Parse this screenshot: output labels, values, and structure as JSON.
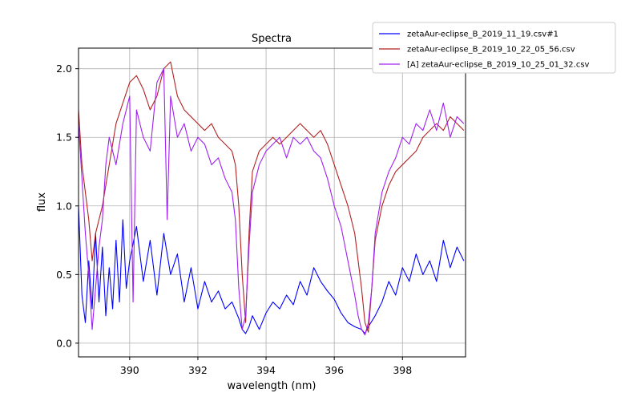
{
  "chart_data": {
    "type": "line",
    "title": "Spectra",
    "xlabel": "wavelength (nm)",
    "ylabel": "flux",
    "xlim": [
      388.5,
      399.85
    ],
    "ylim": [
      -0.1,
      2.15
    ],
    "grid": true,
    "legend_position": "top-right, outside plot",
    "x_ticks": [
      390,
      392,
      394,
      396,
      398
    ],
    "x_tick_labels": [
      "390",
      "392",
      "394",
      "396",
      "398"
    ],
    "y_ticks": [
      0.0,
      0.5,
      1.0,
      1.5,
      2.0
    ],
    "y_tick_labels": [
      "0.0",
      "0.5",
      "1.0",
      "1.5",
      "2.0"
    ],
    "series": [
      {
        "name": "zetaAur-eclipse_B_2019_11_19.csv#1",
        "color": "#0000ff",
        "x": [
          388.5,
          388.6,
          388.7,
          388.8,
          388.9,
          389.0,
          389.1,
          389.2,
          389.3,
          389.4,
          389.5,
          389.6,
          389.7,
          389.8,
          389.9,
          390.0,
          390.2,
          390.4,
          390.6,
          390.8,
          391.0,
          391.2,
          391.4,
          391.6,
          391.8,
          392.0,
          392.2,
          392.4,
          392.6,
          392.8,
          393.0,
          393.2,
          393.3,
          393.4,
          393.5,
          393.6,
          393.8,
          394.0,
          394.2,
          394.4,
          394.6,
          394.8,
          395.0,
          395.2,
          395.4,
          395.6,
          395.8,
          396.0,
          396.2,
          396.4,
          396.6,
          396.8,
          396.9,
          397.0,
          397.2,
          397.4,
          397.6,
          397.8,
          398.0,
          398.2,
          398.4,
          398.6,
          398.8,
          399.0,
          399.2,
          399.4,
          399.6,
          399.8
        ],
        "y": [
          1.0,
          0.35,
          0.15,
          0.6,
          0.25,
          0.8,
          0.3,
          0.7,
          0.2,
          0.55,
          0.25,
          0.75,
          0.3,
          0.9,
          0.4,
          0.6,
          0.85,
          0.45,
          0.75,
          0.35,
          0.8,
          0.5,
          0.65,
          0.3,
          0.55,
          0.25,
          0.45,
          0.3,
          0.38,
          0.25,
          0.3,
          0.18,
          0.1,
          0.07,
          0.12,
          0.2,
          0.1,
          0.22,
          0.3,
          0.25,
          0.35,
          0.28,
          0.45,
          0.35,
          0.55,
          0.45,
          0.38,
          0.32,
          0.22,
          0.15,
          0.12,
          0.1,
          0.07,
          0.12,
          0.2,
          0.3,
          0.45,
          0.35,
          0.55,
          0.45,
          0.65,
          0.5,
          0.6,
          0.45,
          0.75,
          0.55,
          0.7,
          0.6
        ]
      },
      {
        "name": "zetaAur-eclipse_B_2019_10_22_05_56.csv",
        "color": "#b22222",
        "x": [
          388.5,
          388.6,
          388.7,
          388.8,
          388.9,
          389.0,
          389.2,
          389.4,
          389.6,
          389.8,
          390.0,
          390.2,
          390.4,
          390.6,
          390.8,
          391.0,
          391.2,
          391.4,
          391.6,
          391.8,
          392.0,
          392.2,
          392.4,
          392.6,
          392.8,
          393.0,
          393.1,
          393.2,
          393.3,
          393.4,
          393.5,
          393.6,
          393.8,
          394.0,
          394.2,
          394.4,
          394.6,
          394.8,
          395.0,
          395.2,
          395.4,
          395.6,
          395.8,
          396.0,
          396.2,
          396.4,
          396.6,
          396.7,
          396.8,
          396.9,
          397.0,
          397.1,
          397.2,
          397.4,
          397.6,
          397.8,
          398.0,
          398.2,
          398.4,
          398.6,
          398.8,
          399.0,
          399.2,
          399.4,
          399.6,
          399.8
        ],
        "y": [
          1.7,
          1.3,
          1.1,
          0.9,
          0.6,
          0.8,
          1.0,
          1.3,
          1.6,
          1.75,
          1.9,
          1.95,
          1.85,
          1.7,
          1.8,
          2.0,
          2.05,
          1.8,
          1.7,
          1.65,
          1.6,
          1.55,
          1.6,
          1.5,
          1.45,
          1.4,
          1.3,
          1.0,
          0.5,
          0.15,
          0.8,
          1.25,
          1.4,
          1.45,
          1.5,
          1.45,
          1.5,
          1.55,
          1.6,
          1.55,
          1.5,
          1.55,
          1.45,
          1.3,
          1.15,
          1.0,
          0.8,
          0.6,
          0.4,
          0.15,
          0.08,
          0.4,
          0.75,
          1.0,
          1.15,
          1.25,
          1.3,
          1.35,
          1.4,
          1.5,
          1.55,
          1.6,
          1.55,
          1.65,
          1.6,
          1.55
        ]
      },
      {
        "name": "[A] zetaAur-eclipse_B_2019_10_25_01_32.csv",
        "color": "#a020f0",
        "x": [
          388.5,
          388.6,
          388.7,
          388.8,
          388.9,
          389.0,
          389.1,
          389.2,
          389.3,
          389.4,
          389.6,
          389.8,
          390.0,
          390.1,
          390.2,
          390.4,
          390.6,
          390.8,
          391.0,
          391.1,
          391.2,
          391.4,
          391.6,
          391.8,
          392.0,
          392.2,
          392.4,
          392.6,
          392.8,
          393.0,
          393.1,
          393.2,
          393.3,
          393.4,
          393.5,
          393.6,
          393.8,
          394.0,
          394.2,
          394.4,
          394.6,
          394.8,
          395.0,
          395.2,
          395.4,
          395.6,
          395.8,
          396.0,
          396.2,
          396.4,
          396.6,
          396.7,
          396.8,
          396.9,
          397.0,
          397.1,
          397.2,
          397.4,
          397.6,
          397.8,
          398.0,
          398.2,
          398.4,
          398.6,
          398.8,
          399.0,
          399.2,
          399.4,
          399.6,
          399.8
        ],
        "y": [
          1.6,
          1.2,
          0.8,
          0.5,
          0.1,
          0.4,
          0.7,
          0.9,
          1.3,
          1.5,
          1.3,
          1.6,
          1.8,
          0.3,
          1.7,
          1.5,
          1.4,
          1.9,
          2.0,
          0.9,
          1.8,
          1.5,
          1.6,
          1.4,
          1.5,
          1.45,
          1.3,
          1.35,
          1.2,
          1.1,
          0.9,
          0.4,
          0.1,
          0.2,
          0.7,
          1.1,
          1.3,
          1.4,
          1.45,
          1.5,
          1.35,
          1.5,
          1.45,
          1.5,
          1.4,
          1.35,
          1.2,
          1.0,
          0.85,
          0.6,
          0.35,
          0.2,
          0.1,
          0.06,
          0.15,
          0.4,
          0.8,
          1.1,
          1.25,
          1.35,
          1.5,
          1.45,
          1.6,
          1.55,
          1.7,
          1.55,
          1.75,
          1.5,
          1.65,
          1.6
        ]
      }
    ]
  }
}
